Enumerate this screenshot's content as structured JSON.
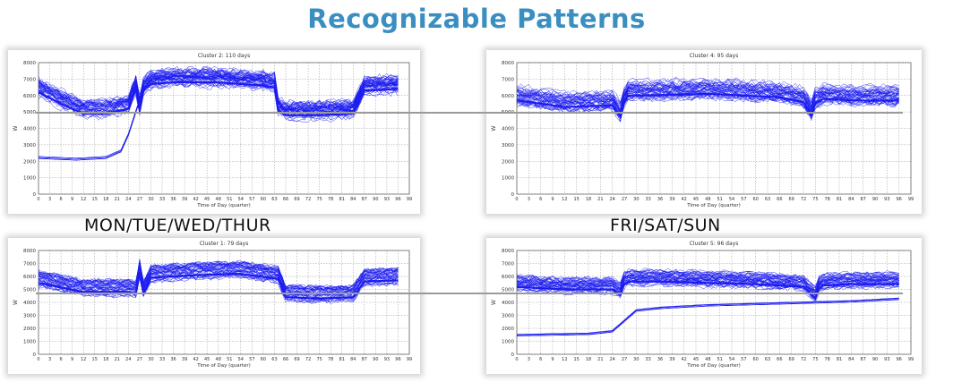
{
  "page": {
    "title": "Recognizable Patterns"
  },
  "groups": {
    "left": "MON/TUE/WED/THUR",
    "right": "FRI/SAT/SUN"
  },
  "colors": {
    "line": "#1c1cf0",
    "title": "#3a8fc0",
    "grid": "#9a9a9a",
    "connector": "#9a9a9a"
  },
  "chart_data": [
    {
      "type": "line",
      "title": "Cluster 2: 110 days",
      "xlabel": "Time of Day (quarter)",
      "ylabel": "W",
      "ylim": [
        0,
        8000
      ],
      "yticks": [
        0,
        1000,
        2000,
        3000,
        4000,
        5000,
        6000,
        7000,
        8000
      ],
      "xticks": [
        0,
        3,
        6,
        9,
        12,
        15,
        18,
        21,
        24,
        27,
        30,
        33,
        36,
        39,
        42,
        45,
        48,
        51,
        54,
        57,
        60,
        63,
        66,
        69,
        72,
        75,
        78,
        81,
        84,
        87,
        90,
        93,
        96,
        99
      ],
      "grid": true,
      "typical_profile": {
        "x": [
          0,
          6,
          12,
          18,
          24,
          26,
          27,
          28,
          30,
          36,
          48,
          60,
          63,
          64,
          66,
          75,
          84,
          87,
          96
        ],
        "y": [
          6500,
          5800,
          5200,
          5200,
          5500,
          6700,
          5400,
          6600,
          7000,
          7100,
          7100,
          6900,
          6800,
          5400,
          5100,
          5100,
          5200,
          6600,
          6700
        ]
      },
      "low_start_profile": {
        "x": [
          0,
          10,
          18,
          22,
          24,
          26,
          28,
          30
        ],
        "y": [
          2200,
          2100,
          2200,
          2600,
          3600,
          5000,
          6400,
          6900
        ]
      }
    },
    {
      "type": "line",
      "title": "Cluster 4: 95 days",
      "xlabel": "Time of Day (quarter)",
      "ylabel": "W",
      "ylim": [
        0,
        8000
      ],
      "yticks": [
        0,
        1000,
        2000,
        3000,
        4000,
        5000,
        6000,
        7000,
        8000
      ],
      "xticks": [
        0,
        3,
        6,
        9,
        12,
        15,
        18,
        21,
        24,
        27,
        30,
        33,
        36,
        39,
        42,
        45,
        48,
        51,
        54,
        57,
        60,
        63,
        66,
        69,
        72,
        75,
        78,
        81,
        84,
        87,
        90,
        93,
        96,
        99
      ],
      "grid": true,
      "typical_profile": {
        "x": [
          0,
          12,
          24,
          26,
          27,
          28,
          32,
          48,
          66,
          72,
          74,
          75,
          77,
          84,
          96
        ],
        "y": [
          6000,
          5600,
          5700,
          5000,
          5900,
          6300,
          6300,
          6400,
          6200,
          5900,
          5100,
          5800,
          6100,
          6000,
          6000
        ]
      }
    },
    {
      "type": "line",
      "title": "Cluster 1: 79 days",
      "xlabel": "Time of Day (quarter)",
      "ylabel": "W",
      "ylim": [
        0,
        8000
      ],
      "yticks": [
        0,
        1000,
        2000,
        3000,
        4000,
        5000,
        6000,
        7000,
        8000
      ],
      "xticks": [
        0,
        3,
        6,
        9,
        12,
        15,
        18,
        21,
        24,
        27,
        30,
        33,
        36,
        39,
        42,
        45,
        48,
        51,
        54,
        57,
        60,
        63,
        66,
        69,
        72,
        75,
        78,
        81,
        84,
        87,
        90,
        93,
        96,
        99
      ],
      "grid": true,
      "typical_profile": {
        "x": [
          0,
          12,
          24,
          26,
          27,
          28,
          30,
          42,
          54,
          64,
          66,
          75,
          84,
          87,
          96
        ],
        "y": [
          5800,
          5100,
          5100,
          5000,
          6600,
          5000,
          6200,
          6400,
          6500,
          6100,
          4700,
          4600,
          4700,
          5900,
          6000
        ]
      }
    },
    {
      "type": "line",
      "title": "Cluster 5: 96 days",
      "xlabel": "Time of Day (quarter)",
      "ylabel": "W",
      "ylim": [
        0,
        8000
      ],
      "yticks": [
        0,
        1000,
        2000,
        3000,
        4000,
        5000,
        6000,
        7000,
        8000
      ],
      "xticks": [
        0,
        3,
        6,
        9,
        12,
        15,
        18,
        21,
        24,
        27,
        30,
        33,
        36,
        39,
        42,
        45,
        48,
        51,
        54,
        57,
        60,
        63,
        66,
        69,
        72,
        75,
        78,
        81,
        84,
        87,
        90,
        93,
        96,
        99
      ],
      "grid": true,
      "typical_profile": {
        "x": [
          0,
          12,
          24,
          26,
          27,
          28,
          36,
          48,
          60,
          72,
          75,
          76,
          77,
          84,
          96
        ],
        "y": [
          5500,
          5300,
          5300,
          4900,
          5700,
          5900,
          5900,
          5800,
          5700,
          5500,
          4600,
          5400,
          5600,
          5700,
          5700
        ]
      },
      "low_start_profile": {
        "x": [
          0,
          18,
          24,
          27,
          30,
          36,
          48,
          72,
          84,
          96
        ],
        "y": [
          1400,
          1500,
          1700,
          2500,
          3300,
          3500,
          3700,
          3900,
          4000,
          4200
        ]
      }
    }
  ]
}
